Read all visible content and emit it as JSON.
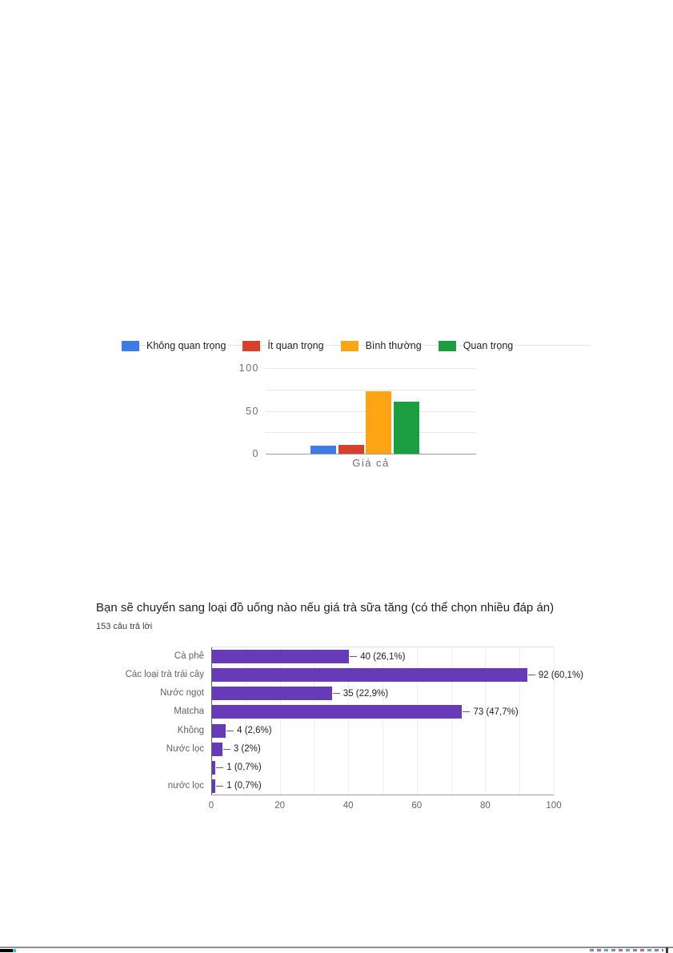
{
  "document": {
    "type": "scanned-survey-results-page"
  },
  "chart_data": [
    {
      "type": "bar",
      "orientation": "vertical",
      "title": "",
      "categories": [
        "Giá cả"
      ],
      "series": [
        {
          "name": "Không quan trọng",
          "color": "#3D7BE5",
          "values": [
            9
          ]
        },
        {
          "name": "Ít quan trọng",
          "color": "#D8402C",
          "values": [
            10
          ]
        },
        {
          "name": "Bình thường",
          "color": "#FFA413",
          "values": [
            73
          ]
        },
        {
          "name": "Quan trọng",
          "color": "#1D9D42",
          "values": [
            61
          ]
        }
      ],
      "xlabel": "Giá cả",
      "ylabel": "",
      "ylim": [
        0,
        100
      ],
      "y_ticks": [
        100,
        50,
        0
      ],
      "gridlines": [
        100,
        75,
        50,
        25,
        0
      ],
      "grid": true,
      "legend_position": "top"
    },
    {
      "type": "bar",
      "orientation": "horizontal",
      "title": "Bạn sẽ chuyển sang loại đồ uống nào nếu giá trà sữa tăng (có thể chọn nhiều đáp án)",
      "subtitle": "153 câu trả lời",
      "categories": [
        "Cà phê",
        "Các loại trà trái cây",
        "Nước ngọt",
        "Matcha",
        "Không",
        "Nước lọc",
        "",
        "nước lọc"
      ],
      "values": [
        40,
        92,
        35,
        73,
        4,
        3,
        1,
        1
      ],
      "value_labels": [
        "40 (26,1%)",
        "92 (60,1%)",
        "35 (22,9%)",
        "73 (47,7%)",
        "4 (2,6%)",
        "3 (2%)",
        "1 (0,7%)",
        "1 (0,7%)"
      ],
      "bar_color": "#673AB7",
      "xlim": [
        0,
        100
      ],
      "x_ticks": [
        0,
        20,
        40,
        60,
        80,
        100
      ],
      "grid_interval": 10,
      "grid": true,
      "legend_position": "none"
    }
  ],
  "artifacts": {
    "separator_line_color": "#8c8c8c",
    "left_edge_mark_color": "#000000",
    "left_edge_accent_color": "#2bc9d6"
  }
}
